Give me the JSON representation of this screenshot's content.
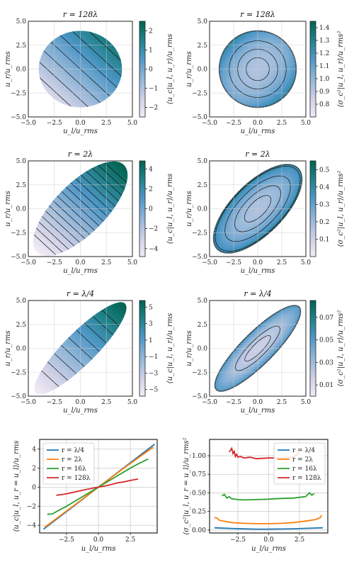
{
  "chart_data": [
    {
      "type": "heatmap",
      "row": 0,
      "col": 0,
      "title": "r = 128λ",
      "xlabel": "u_l/u_rms",
      "ylabel": "u_r/u_rms",
      "colorbar_label": "⟨u_c|u_l, u_r⟩/u_rms",
      "xlim": [
        -5,
        5
      ],
      "ylim": [
        -5,
        5
      ],
      "xticks": [
        "−5.0",
        "−2.5",
        "0.0",
        "2.5",
        "5.0"
      ],
      "yticks": [
        "−5.0",
        "−2.5",
        "0.0",
        "2.5",
        "5.0"
      ],
      "colorbar_range": [
        -2.5,
        2.5
      ],
      "colorbar_ticks": [
        {
          "v": 2,
          "t": "2"
        },
        {
          "v": 1,
          "t": "1"
        },
        {
          "v": 0,
          "t": "0"
        },
        {
          "v": -1,
          "t": "−1"
        },
        {
          "v": -2,
          "t": "−2"
        }
      ],
      "field": "mean",
      "rho": 0.0,
      "a": 0.5,
      "b": 0.5,
      "extent": 4.0,
      "fill_levels": [
        0.25,
        0.5
      ],
      "contour_levels": [
        -2,
        -1.5,
        -1,
        -0.5,
        0,
        0.5,
        1,
        1.5,
        2
      ]
    },
    {
      "type": "heatmap",
      "row": 0,
      "col": 1,
      "title": "r = 128λ",
      "xlabel": "u_l/u_rms",
      "ylabel": "u_r/u_rms",
      "colorbar_label": "⟨σ_c²|u_l, u_r⟩/u_rms²",
      "xlim": [
        -5,
        5
      ],
      "ylim": [
        -5,
        5
      ],
      "xticks": [
        "−5.0",
        "−2.5",
        "0.0",
        "2.5",
        "5.0"
      ],
      "yticks": [
        "−5.0",
        "−2.5",
        "0.0",
        "2.5",
        "5.0"
      ],
      "colorbar_range": [
        0.7,
        1.45
      ],
      "colorbar_ticks": [
        {
          "v": 1.4,
          "t": "1.4"
        },
        {
          "v": 1.3,
          "t": "1.3"
        },
        {
          "v": 1.2,
          "t": "1.2"
        },
        {
          "v": 1.1,
          "t": "1.1"
        },
        {
          "v": 1.0,
          "t": "1.0"
        },
        {
          "v": 0.9,
          "t": "0.9"
        },
        {
          "v": 0.8,
          "t": "0.8"
        }
      ],
      "field": "var",
      "rho": 0.0,
      "extent": 4.0,
      "fill_levels": [
        0.3,
        0.4
      ],
      "contour_levels": [
        0.95,
        1.0,
        1.05
      ]
    },
    {
      "type": "heatmap",
      "row": 1,
      "col": 0,
      "title": "r = 2λ",
      "xlabel": "u_l/u_rms",
      "ylabel": "u_r/u_rms",
      "colorbar_label": "⟨u_c|u_l, u_r⟩/u_rms",
      "xlim": [
        -5,
        5
      ],
      "ylim": [
        -5,
        5
      ],
      "xticks": [
        "−5.0",
        "−2.5",
        "0.0",
        "2.5",
        "5.0"
      ],
      "yticks": [
        "−5.0",
        "−2.5",
        "0.0",
        "2.5",
        "5.0"
      ],
      "colorbar_range": [
        -4.8,
        4.8
      ],
      "colorbar_ticks": [
        {
          "v": 4,
          "t": "4"
        },
        {
          "v": 2,
          "t": "2"
        },
        {
          "v": 0,
          "t": "0"
        },
        {
          "v": -2,
          "t": "−2"
        },
        {
          "v": -4,
          "t": "−4"
        }
      ],
      "field": "mean",
      "rho": 0.8,
      "a": 0.5,
      "b": 0.5,
      "extent": 4.3,
      "fill_levels": [
        0.5,
        0.6
      ],
      "contour_levels": [
        -4,
        -3.5,
        -3,
        -2.5,
        -2,
        -1.5,
        -1,
        -0.5,
        0,
        0.5,
        1,
        1.5,
        2,
        2.5,
        3,
        3.5,
        4
      ]
    },
    {
      "type": "heatmap",
      "row": 1,
      "col": 1,
      "title": "r = 2λ",
      "xlabel": "u_l/u_rms",
      "ylabel": "u_r/u_rms",
      "colorbar_label": "⟨σ_c²|u_l, u_r⟩/u_rms²",
      "xlim": [
        -5,
        5
      ],
      "ylim": [
        -5,
        5
      ],
      "xticks": [
        "−5.0",
        "−2.5",
        "0.0",
        "2.5",
        "5.0"
      ],
      "yticks": [
        "−5.0",
        "−2.5",
        "0.0",
        "2.5",
        "5.0"
      ],
      "colorbar_range": [
        0.0,
        0.55
      ],
      "colorbar_ticks": [
        {
          "v": 0.5,
          "t": "0.5"
        },
        {
          "v": 0.4,
          "t": "0.4"
        },
        {
          "v": 0.3,
          "t": "0.3"
        },
        {
          "v": 0.2,
          "t": "0.2"
        },
        {
          "v": 0.1,
          "t": "0.1"
        }
      ],
      "field": "var",
      "rho": 0.8,
      "extent": 4.3,
      "fill_levels": [
        0.3,
        0.4
      ],
      "contour_levels": [
        0.1,
        0.15,
        0.2,
        0.25
      ]
    },
    {
      "type": "heatmap",
      "row": 2,
      "col": 0,
      "title": "r = λ/4",
      "xlabel": "u_l/u_rms",
      "ylabel": "u_r/u_rms",
      "colorbar_label": "⟨u_c|u_l, u_r⟩/u_rms",
      "xlim": [
        -5,
        5
      ],
      "ylim": [
        -5,
        5
      ],
      "xticks": [
        "−5.0",
        "−2.5",
        "0.0",
        "2.5",
        "5.0"
      ],
      "yticks": [
        "−5.0",
        "−2.5",
        "0.0",
        "2.5",
        "5.0"
      ],
      "colorbar_range": [
        -5.8,
        5.8
      ],
      "colorbar_ticks": [
        {
          "v": 5,
          "t": "5"
        },
        {
          "v": 3,
          "t": "3"
        },
        {
          "v": 1,
          "t": "1"
        },
        {
          "v": -1,
          "t": "−1"
        },
        {
          "v": -3,
          "t": "−3"
        },
        {
          "v": -5,
          "t": "−5"
        }
      ],
      "field": "mean",
      "rho": 0.93,
      "a": 0.5,
      "b": 0.5,
      "extent": 4.4,
      "fill_levels": [
        0.6,
        0.7
      ],
      "contour_levels": [
        -4,
        -3,
        -2,
        -1,
        0,
        1,
        2,
        3,
        4
      ]
    },
    {
      "type": "heatmap",
      "row": 2,
      "col": 1,
      "title": "r = λ/4",
      "xlabel": "u_l/u_rms",
      "ylabel": "u_r/u_rms",
      "colorbar_label": "⟨σ_c²|u_l, u_r⟩/u_rms²",
      "xlim": [
        -5,
        5
      ],
      "ylim": [
        -5,
        5
      ],
      "xticks": [
        "−5.0",
        "−2.5",
        "0.0",
        "2.5",
        "5.0"
      ],
      "yticks": [
        "−5.0",
        "−2.5",
        "0.0",
        "2.5",
        "5.0"
      ],
      "colorbar_range": [
        0.0,
        0.085
      ],
      "colorbar_ticks": [
        {
          "v": 0.07,
          "t": "0.07"
        },
        {
          "v": 0.05,
          "t": "0.05"
        },
        {
          "v": 0.03,
          "t": "0.03"
        },
        {
          "v": 0.01,
          "t": "0.01"
        }
      ],
      "field": "var",
      "rho": 0.93,
      "extent": 4.4,
      "fill_levels": [
        0.2,
        0.3
      ],
      "contour_levels": [
        0.01,
        0.02
      ]
    },
    {
      "type": "line",
      "row": 3,
      "col": 0,
      "title": "",
      "xlabel": "u_l/u_rms",
      "ylabel": "⟨u_c|u_l, u_r = u_l⟩/u_rms",
      "xlim": [
        -4.6,
        4.6
      ],
      "ylim": [
        -4.8,
        5.0
      ],
      "xticks": [
        {
          "v": -2.5,
          "t": "−2.5"
        },
        {
          "v": 0.0,
          "t": "0.0"
        },
        {
          "v": 2.5,
          "t": "2.5"
        }
      ],
      "yticks": [
        {
          "v": 4,
          "t": "4"
        },
        {
          "v": 2,
          "t": "2"
        },
        {
          "v": 0,
          "t": "0"
        },
        {
          "v": -2,
          "t": "−2"
        },
        {
          "v": -4,
          "t": "−4"
        }
      ],
      "legend": "top-left",
      "series": [
        {
          "name": "r = λ/4",
          "color": "#1f77b4",
          "x": [
            -4.3,
            -2,
            0,
            2,
            4.4
          ],
          "y": [
            -4.4,
            -2.05,
            0,
            2.05,
            4.5
          ]
        },
        {
          "name": "r = 2λ",
          "color": "#ff7f0e",
          "x": [
            -4.2,
            -2,
            0,
            2,
            4.3
          ],
          "y": [
            -4.2,
            -2.0,
            0,
            2.0,
            4.2
          ]
        },
        {
          "name": "r = 16λ",
          "color": "#2ca02c",
          "x": [
            -4.0,
            -3.6,
            -3.2,
            -2.5,
            -2,
            -1,
            0,
            1,
            2,
            2.5,
            3.2,
            3.9
          ],
          "y": [
            -2.85,
            -2.8,
            -2.5,
            -2.0,
            -1.6,
            -0.8,
            0,
            0.8,
            1.6,
            2.0,
            2.5,
            2.95
          ]
        },
        {
          "name": "r = 128λ",
          "color": "#d62728",
          "x": [
            -3.3,
            -3.0,
            -2.5,
            -2,
            -1.5,
            -1,
            -0.5,
            0,
            0.5,
            1,
            1.5,
            2,
            2.5,
            3.1
          ],
          "y": [
            -0.85,
            -0.8,
            -0.7,
            -0.55,
            -0.4,
            -0.25,
            -0.12,
            0,
            0.12,
            0.28,
            0.45,
            0.55,
            0.7,
            0.85
          ]
        }
      ]
    },
    {
      "type": "line",
      "row": 3,
      "col": 1,
      "title": "",
      "xlabel": "u_l/u_rms",
      "ylabel": "⟨σ_c²|u_l, u_r = u_l⟩/u_rms²",
      "xlim": [
        -4.8,
        4.8
      ],
      "ylim": [
        -0.04,
        1.22
      ],
      "xticks": [
        {
          "v": -2.5,
          "t": "−2.5"
        },
        {
          "v": 0.0,
          "t": "0.0"
        },
        {
          "v": 2.5,
          "t": "2.5"
        }
      ],
      "yticks": [
        {
          "v": 1.0,
          "t": "1.00"
        },
        {
          "v": 0.75,
          "t": "0.75"
        },
        {
          "v": 0.5,
          "t": "0.50"
        },
        {
          "v": 0.25,
          "t": "0.25"
        },
        {
          "v": 0.0,
          "t": "0.00"
        }
      ],
      "legend": "top-right",
      "series": [
        {
          "name": "r = λ/4",
          "color": "#1f77b4",
          "x": [
            -4.4,
            -3,
            -2,
            -1,
            0,
            1,
            2,
            3,
            4.4
          ],
          "y": [
            0.03,
            0.02,
            0.015,
            0.012,
            0.012,
            0.013,
            0.016,
            0.022,
            0.03
          ]
        },
        {
          "name": "r = 2λ",
          "color": "#ff7f0e",
          "x": [
            -4.4,
            -4.2,
            -4.0,
            -3,
            -2,
            -1,
            0,
            1,
            2,
            3,
            3.8,
            4.2,
            4.3
          ],
          "y": [
            0.17,
            0.16,
            0.13,
            0.1,
            0.09,
            0.085,
            0.085,
            0.09,
            0.1,
            0.12,
            0.14,
            0.17,
            0.2
          ]
        },
        {
          "name": "r = 16λ",
          "color": "#2ca02c",
          "x": [
            -3.8,
            -3.6,
            -3.4,
            -3.2,
            -3,
            -2.5,
            -2,
            -1,
            0,
            1,
            2,
            2.5,
            3,
            3.3,
            3.5,
            3.7
          ],
          "y": [
            0.46,
            0.48,
            0.43,
            0.45,
            0.42,
            0.41,
            0.405,
            0.41,
            0.415,
            0.425,
            0.43,
            0.44,
            0.45,
            0.5,
            0.47,
            0.49
          ]
        },
        {
          "name": "r = 128λ",
          "color": "#d62728",
          "x": [
            -3.2,
            -3.0,
            -2.9,
            -2.8,
            -2.7,
            -2.6,
            -2.5,
            -2.3,
            -2,
            -1.5,
            -1,
            0,
            1,
            2,
            2.3,
            2.5
          ],
          "y": [
            1.05,
            1.1,
            1.03,
            1.06,
            0.99,
            1.02,
            0.98,
            0.99,
            0.97,
            0.98,
            0.96,
            0.97,
            0.97,
            0.98,
            1.02,
            1.05
          ]
        }
      ]
    }
  ]
}
